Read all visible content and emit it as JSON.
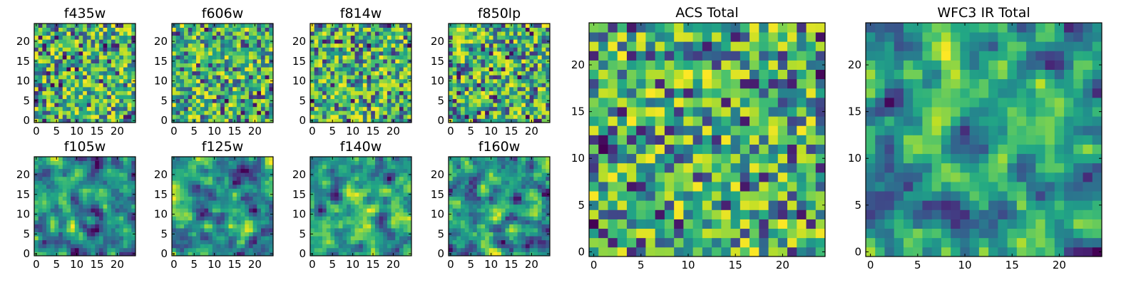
{
  "chart_data": [
    {
      "type": "heatmap",
      "title": "f435w",
      "colormap": "viridis",
      "grid_size": 25,
      "xlim": [
        0,
        24
      ],
      "ylim": [
        0,
        24
      ],
      "xticks": [
        0,
        5,
        10,
        15,
        20
      ],
      "yticks": [
        0,
        5,
        10,
        15,
        20
      ],
      "xticklabels": [
        "0",
        "5",
        "10",
        "15",
        "20"
      ],
      "yticklabels": [
        "0",
        "5",
        "10",
        "15",
        "20"
      ],
      "seed": 11,
      "smooth": 0
    },
    {
      "type": "heatmap",
      "title": "f606w",
      "colormap": "viridis",
      "grid_size": 25,
      "xlim": [
        0,
        24
      ],
      "ylim": [
        0,
        24
      ],
      "xticks": [
        0,
        5,
        10,
        15,
        20
      ],
      "yticks": [
        0,
        5,
        10,
        15,
        20
      ],
      "xticklabels": [
        "0",
        "5",
        "10",
        "15",
        "20"
      ],
      "yticklabels": [
        "0",
        "5",
        "10",
        "15",
        "20"
      ],
      "seed": 23,
      "smooth": 0
    },
    {
      "type": "heatmap",
      "title": "f814w",
      "colormap": "viridis",
      "grid_size": 25,
      "xlim": [
        0,
        24
      ],
      "ylim": [
        0,
        24
      ],
      "xticks": [
        0,
        5,
        10,
        15,
        20
      ],
      "yticks": [
        0,
        5,
        10,
        15,
        20
      ],
      "xticklabels": [
        "0",
        "5",
        "10",
        "15",
        "20"
      ],
      "yticklabels": [
        "0",
        "5",
        "10",
        "15",
        "20"
      ],
      "seed": 37,
      "smooth": 0
    },
    {
      "type": "heatmap",
      "title": "f850lp",
      "colormap": "viridis",
      "grid_size": 25,
      "xlim": [
        0,
        24
      ],
      "ylim": [
        0,
        24
      ],
      "xticks": [
        0,
        5,
        10,
        15,
        20
      ],
      "yticks": [
        0,
        5,
        10,
        15,
        20
      ],
      "xticklabels": [
        "0",
        "5",
        "10",
        "15",
        "20"
      ],
      "yticklabels": [
        "0",
        "5",
        "10",
        "15",
        "20"
      ],
      "seed": 41,
      "smooth": 0
    },
    {
      "type": "heatmap",
      "title": "f105w",
      "colormap": "viridis",
      "grid_size": 25,
      "xlim": [
        0,
        24
      ],
      "ylim": [
        0,
        24
      ],
      "xticks": [
        0,
        5,
        10,
        15,
        20
      ],
      "yticks": [
        0,
        5,
        10,
        15,
        20
      ],
      "xticklabels": [
        "0",
        "5",
        "10",
        "15",
        "20"
      ],
      "yticklabels": [
        "0",
        "5",
        "10",
        "15",
        "20"
      ],
      "seed": 53,
      "smooth": 1
    },
    {
      "type": "heatmap",
      "title": "f125w",
      "colormap": "viridis",
      "grid_size": 25,
      "xlim": [
        0,
        24
      ],
      "ylim": [
        0,
        24
      ],
      "xticks": [
        0,
        5,
        10,
        15,
        20
      ],
      "yticks": [
        0,
        5,
        10,
        15,
        20
      ],
      "xticklabels": [
        "0",
        "5",
        "10",
        "15",
        "20"
      ],
      "yticklabels": [
        "0",
        "5",
        "10",
        "15",
        "20"
      ],
      "seed": 67,
      "smooth": 1
    },
    {
      "type": "heatmap",
      "title": "f140w",
      "colormap": "viridis",
      "grid_size": 25,
      "xlim": [
        0,
        24
      ],
      "ylim": [
        0,
        24
      ],
      "xticks": [
        0,
        5,
        10,
        15,
        20
      ],
      "yticks": [
        0,
        5,
        10,
        15,
        20
      ],
      "xticklabels": [
        "0",
        "5",
        "10",
        "15",
        "20"
      ],
      "yticklabels": [
        "0",
        "5",
        "10",
        "15",
        "20"
      ],
      "seed": 71,
      "smooth": 1
    },
    {
      "type": "heatmap",
      "title": "f160w",
      "colormap": "viridis",
      "grid_size": 25,
      "xlim": [
        0,
        24
      ],
      "ylim": [
        0,
        24
      ],
      "xticks": [
        0,
        5,
        10,
        15,
        20
      ],
      "yticks": [
        0,
        5,
        10,
        15,
        20
      ],
      "xticklabels": [
        "0",
        "5",
        "10",
        "15",
        "20"
      ],
      "yticklabels": [
        "0",
        "5",
        "10",
        "15",
        "20"
      ],
      "seed": 83,
      "smooth": 1
    },
    {
      "type": "heatmap",
      "title": "ACS Total",
      "colormap": "viridis",
      "grid_size": 25,
      "xlim": [
        0,
        24
      ],
      "ylim": [
        0,
        24
      ],
      "xticks": [
        0,
        5,
        10,
        15,
        20
      ],
      "yticks": [
        0,
        5,
        10,
        15,
        20
      ],
      "xticklabels": [
        "0",
        "5",
        "10",
        "15",
        "20"
      ],
      "yticklabels": [
        "0",
        "5",
        "10",
        "15",
        "20"
      ],
      "seed": 97,
      "smooth": 0
    },
    {
      "type": "heatmap",
      "title": "WFC3 IR Total",
      "colormap": "viridis",
      "grid_size": 25,
      "xlim": [
        0,
        24
      ],
      "ylim": [
        0,
        24
      ],
      "xticks": [
        0,
        5,
        10,
        15,
        20
      ],
      "yticks": [
        0,
        5,
        10,
        15,
        20
      ],
      "xticklabels": [
        "0",
        "5",
        "10",
        "15",
        "20"
      ],
      "yticklabels": [
        "0",
        "5",
        "10",
        "15",
        "20"
      ],
      "seed": 101,
      "smooth": 1
    }
  ],
  "colors": {
    "background": "#ffffff",
    "frame": "#000000",
    "text": "#000000"
  }
}
